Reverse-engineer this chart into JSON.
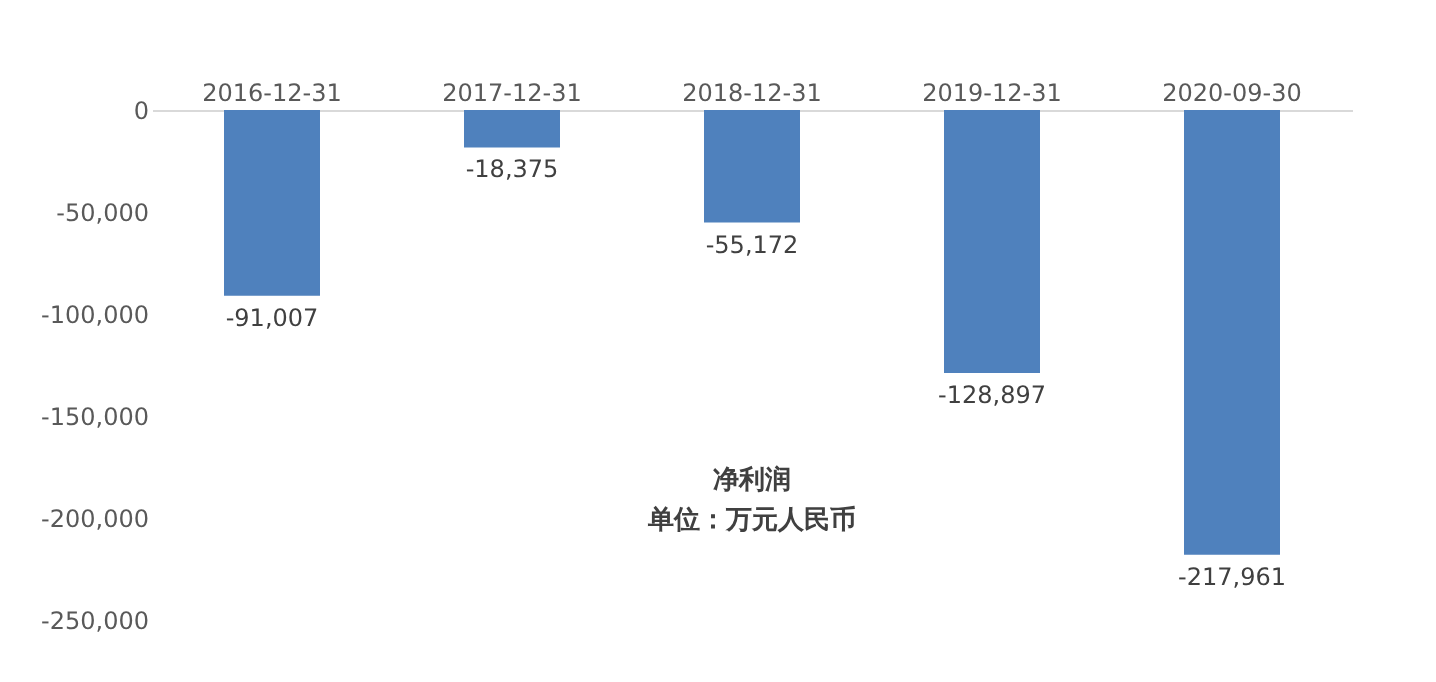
{
  "chart_data": {
    "type": "bar",
    "title": "净利润",
    "subtitle": "单位：万元人民币",
    "categories": [
      "2016-12-31",
      "2017-12-31",
      "2018-12-31",
      "2019-12-31",
      "2020-09-30"
    ],
    "values": [
      -91007,
      -18375,
      -55172,
      -128897,
      -217961
    ],
    "value_labels": [
      "-91,007",
      "-18,375",
      "-55,172",
      "-128,897",
      "-217,961"
    ],
    "color": "#4f81bd",
    "ylim": [
      -250000,
      0
    ],
    "yticks": [
      {
        "value": -250000,
        "label": "-250,000"
      },
      {
        "value": -200000,
        "label": "-200,000"
      },
      {
        "value": -150000,
        "label": "-150,000"
      },
      {
        "value": -100000,
        "label": "-100,000"
      },
      {
        "value": -50000,
        "label": "-50,000"
      },
      0
    ],
    "grid": false
  }
}
